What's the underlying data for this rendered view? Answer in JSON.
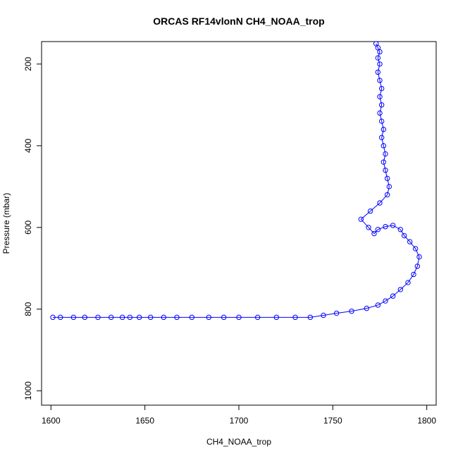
{
  "chart_data": {
    "type": "scatter",
    "title": "ORCAS RF14vlonN CH4_NOAA_trop",
    "xlabel": "CH4_NOAA_trop",
    "ylabel": "Pressure (mbar)",
    "xlim": [
      1595,
      1805
    ],
    "ylim": [
      1035,
      145
    ],
    "y_reversed": true,
    "x_ticks": [
      1600,
      1650,
      1700,
      1750,
      1800
    ],
    "y_ticks": [
      200,
      400,
      600,
      800,
      1000
    ],
    "grid": false,
    "legend": "none",
    "color": "#0000ff",
    "marker": "open-circle",
    "connected": true,
    "x": [
      1601,
      1605,
      1612,
      1618,
      1625,
      1632,
      1638,
      1642,
      1647,
      1653,
      1660,
      1667,
      1675,
      1684,
      1692,
      1700,
      1710,
      1720,
      1730,
      1738,
      1745,
      1752,
      1760,
      1768,
      1774,
      1778,
      1782,
      1786,
      1790,
      1793,
      1795,
      1796,
      1794,
      1791,
      1788,
      1786,
      1782,
      1778,
      1774,
      1772,
      1769,
      1765,
      1770,
      1775,
      1779,
      1780,
      1779,
      1778,
      1777,
      1778,
      1777,
      1776,
      1777,
      1776,
      1775,
      1776,
      1775,
      1776,
      1775,
      1774,
      1775,
      1774,
      1775,
      1774,
      1773
    ],
    "y": [
      820,
      820,
      820,
      820,
      820,
      820,
      820,
      820,
      820,
      820,
      820,
      820,
      820,
      820,
      820,
      820,
      820,
      820,
      820,
      820,
      815,
      810,
      805,
      798,
      790,
      780,
      768,
      752,
      735,
      715,
      695,
      672,
      652,
      635,
      620,
      605,
      595,
      598,
      605,
      615,
      600,
      580,
      560,
      540,
      520,
      500,
      480,
      460,
      440,
      420,
      400,
      380,
      360,
      340,
      320,
      300,
      280,
      260,
      240,
      220,
      200,
      185,
      170,
      160,
      150
    ]
  }
}
